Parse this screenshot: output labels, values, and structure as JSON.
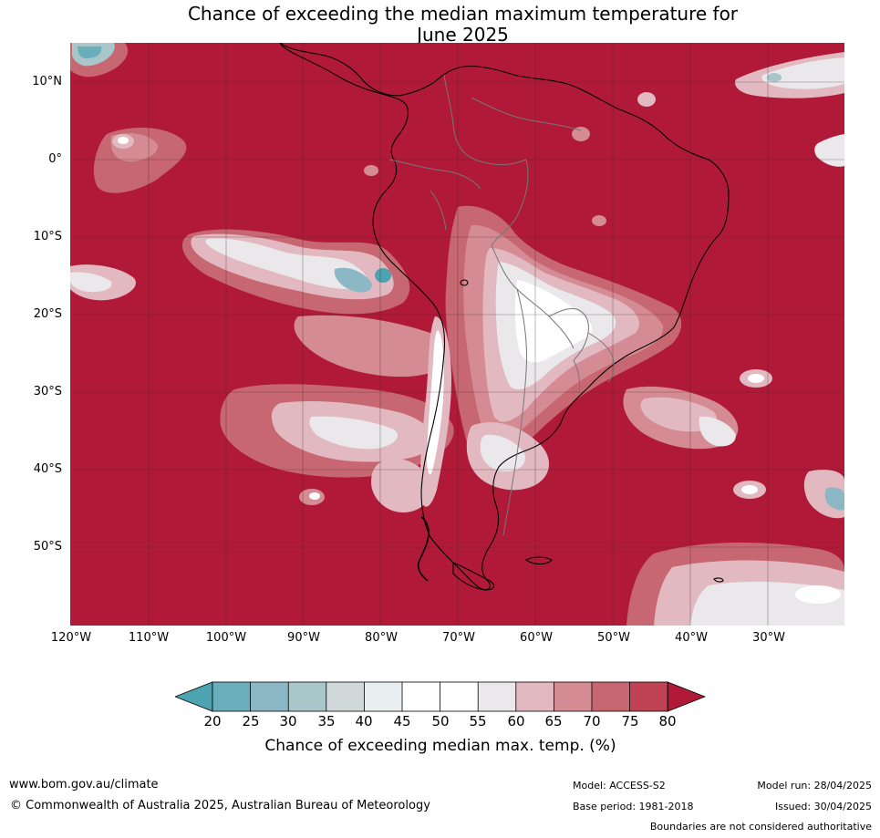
{
  "title_line1": "Chance of exceeding the median maximum temperature for",
  "title_line2": "June 2025",
  "map": {
    "lat_labels": [
      "10°N",
      "0°",
      "10°S",
      "20°S",
      "30°S",
      "40°S",
      "50°S"
    ],
    "lon_labels": [
      "120°W",
      "110°W",
      "100°W",
      "90°W",
      "80°W",
      "70°W",
      "60°W",
      "50°W",
      "40°W",
      "30°W"
    ],
    "lon_range": [
      -120,
      -20
    ],
    "lat_range": [
      -60,
      15
    ],
    "dominant_color": "#b01a38"
  },
  "colorbar": {
    "ticks": [
      "20",
      "25",
      "30",
      "35",
      "40",
      "45",
      "50",
      "55",
      "60",
      "65",
      "70",
      "75",
      "80"
    ],
    "colors": [
      "#4da3b0",
      "#6aaebb",
      "#8cb8c5",
      "#a9c7cb",
      "#d1d8da",
      "#e9eff1",
      "#ffffff",
      "#ffffff",
      "#eae8ea",
      "#e2b9c0",
      "#d48b94",
      "#c76772",
      "#bf4352",
      "#b01a38"
    ],
    "label": "Chance of exceeding median max. temp. (%)"
  },
  "footer": {
    "website": "www.bom.gov.au/climate",
    "copyright": "© Commonwealth of Australia 2025, Australian Bureau of Meteorology",
    "model": "Model: ACCESS-S2",
    "base_period": "Base period: 1981-2018",
    "model_run": "Model run: 28/04/2025",
    "issued": "Issued: 30/04/2025",
    "disclaimer": "Boundaries are not considered authoritative"
  }
}
